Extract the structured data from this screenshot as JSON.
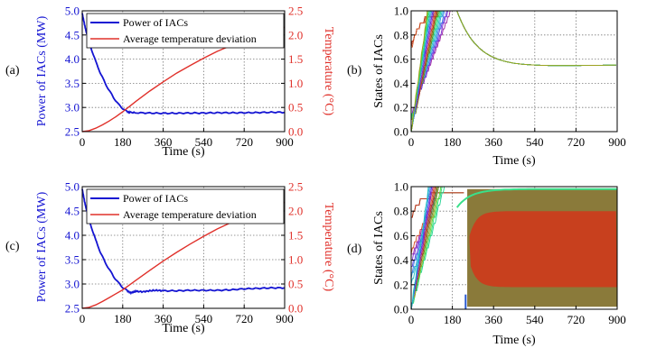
{
  "chart_data": [
    {
      "panel_label": "(a)",
      "type": "line",
      "xlabel": "Time (s)",
      "ylabel": "Power of IACs (MW)",
      "ylabel_right": "Temperature (°C)",
      "xlim": [
        0,
        900
      ],
      "ylim": [
        2.5,
        5.0
      ],
      "ylim_right": [
        0,
        2.5
      ],
      "xticks": [
        "0",
        "180",
        "360",
        "540",
        "720",
        "900"
      ],
      "yticks": [
        "2.5",
        "3.0",
        "3.5",
        "4.0",
        "4.5",
        "5.0"
      ],
      "yticks_right": [
        "0.0",
        "0.5",
        "1.0",
        "1.5",
        "2.0",
        "2.5"
      ],
      "grid": true,
      "legend_position": "top-right",
      "series": [
        {
          "name": "Power of IACs",
          "axis": "left",
          "color": "#1414d2",
          "x": [
            0,
            10,
            20,
            40,
            60,
            80,
            100,
            120,
            140,
            160,
            180,
            200,
            210,
            240,
            300,
            360,
            420,
            480,
            540,
            600,
            660,
            720,
            780,
            840,
            900
          ],
          "y": [
            4.95,
            4.72,
            4.52,
            4.22,
            3.95,
            3.72,
            3.52,
            3.35,
            3.2,
            3.07,
            2.98,
            2.91,
            2.9,
            2.89,
            2.885,
            2.88,
            2.88,
            2.885,
            2.885,
            2.89,
            2.89,
            2.89,
            2.895,
            2.9,
            2.9
          ]
        },
        {
          "name": "Average temperature deviation",
          "axis": "right",
          "color": "#e0302a",
          "x": [
            0,
            30,
            60,
            90,
            120,
            150,
            180,
            210,
            240,
            300,
            360,
            420,
            480,
            540,
            600,
            660,
            720,
            780,
            840,
            900
          ],
          "y": [
            0.0,
            0.02,
            0.07,
            0.14,
            0.22,
            0.31,
            0.41,
            0.52,
            0.63,
            0.84,
            1.03,
            1.21,
            1.37,
            1.52,
            1.66,
            1.78,
            1.89,
            1.99,
            2.08,
            2.16
          ]
        }
      ]
    },
    {
      "panel_label": "(b)",
      "type": "line",
      "xlabel": "Time (s)",
      "ylabel": "States of IACs",
      "xlim": [
        0,
        900
      ],
      "ylim": [
        0.0,
        1.0
      ],
      "xticks": [
        "0",
        "180",
        "360",
        "540",
        "720",
        "900"
      ],
      "yticks": [
        "0.0",
        "0.2",
        "0.4",
        "0.6",
        "0.8",
        "1.0"
      ],
      "grid": true,
      "converged_state": 0.53,
      "colors": [
        "#5a8a1e",
        "#8a5a1e",
        "#c0301e",
        "#d04a1e",
        "#9a1ea0",
        "#7a2ad0",
        "#5a3ae0",
        "#3a7ae0",
        "#2aa0e0",
        "#1ec0c0",
        "#1ed090",
        "#2ae070",
        "#60d030",
        "#a0a020"
      ]
    },
    {
      "panel_label": "(c)",
      "type": "line",
      "xlabel": "Time (s)",
      "ylabel": "Power of IACs (MW)",
      "ylabel_right": "Temperature (°C)",
      "xlim": [
        0,
        900
      ],
      "ylim": [
        2.5,
        5.0
      ],
      "ylim_right": [
        0,
        2.5
      ],
      "xticks": [
        "0",
        "180",
        "360",
        "540",
        "720",
        "900"
      ],
      "yticks": [
        "2.5",
        "3.0",
        "3.5",
        "4.0",
        "4.5",
        "5.0"
      ],
      "yticks_right": [
        "0.0",
        "0.5",
        "1.0",
        "1.5",
        "2.0",
        "2.5"
      ],
      "grid": true,
      "legend_position": "top-right",
      "series": [
        {
          "name": "Power of IACs",
          "axis": "left",
          "color": "#1414d2",
          "x": [
            0,
            10,
            20,
            40,
            60,
            80,
            100,
            120,
            140,
            160,
            180,
            200,
            215,
            225,
            240,
            270,
            300,
            330,
            360,
            420,
            480,
            540,
            600,
            660,
            720,
            780,
            840,
            900
          ],
          "y": [
            4.95,
            4.7,
            4.5,
            4.18,
            3.9,
            3.66,
            3.46,
            3.3,
            3.15,
            3.03,
            2.93,
            2.86,
            2.82,
            2.83,
            2.85,
            2.84,
            2.86,
            2.87,
            2.86,
            2.86,
            2.87,
            2.87,
            2.87,
            2.88,
            2.9,
            2.91,
            2.92,
            2.92
          ]
        },
        {
          "name": "Average temperature deviation",
          "axis": "right",
          "color": "#e0302a",
          "x": [
            0,
            30,
            60,
            90,
            120,
            150,
            180,
            210,
            240,
            300,
            360,
            420,
            480,
            540,
            600,
            660,
            720,
            780,
            840,
            900
          ],
          "y": [
            0.0,
            0.02,
            0.07,
            0.14,
            0.22,
            0.3,
            0.38,
            0.48,
            0.58,
            0.78,
            0.97,
            1.15,
            1.32,
            1.48,
            1.63,
            1.76,
            1.88,
            1.99,
            2.09,
            2.18
          ]
        }
      ]
    },
    {
      "panel_label": "(d)",
      "type": "line",
      "xlabel": "Time (s)",
      "ylabel": "States of IACs",
      "xlim": [
        0,
        900
      ],
      "ylim": [
        0.0,
        1.0
      ],
      "xticks": [
        "0",
        "180",
        "360",
        "540",
        "720",
        "900"
      ],
      "yticks": [
        "0.0",
        "0.2",
        "0.4",
        "0.6",
        "0.8",
        "1.0"
      ],
      "grid": true,
      "band_outer": [
        0.02,
        0.98
      ],
      "band_inner": [
        0.18,
        0.8
      ],
      "colors": [
        "#5a8a1e",
        "#8a5a1e",
        "#c0301e",
        "#d04a1e",
        "#9a1ea0",
        "#7a2ad0",
        "#5a3ae0",
        "#3a7ae0",
        "#2aa0e0",
        "#1ec0c0",
        "#1ed090",
        "#2ae070",
        "#60d030",
        "#a0a020"
      ],
      "band_colors": {
        "outer": "#8a7a3a",
        "inner": "#c8401e",
        "edge": "#3ae08a"
      }
    }
  ]
}
